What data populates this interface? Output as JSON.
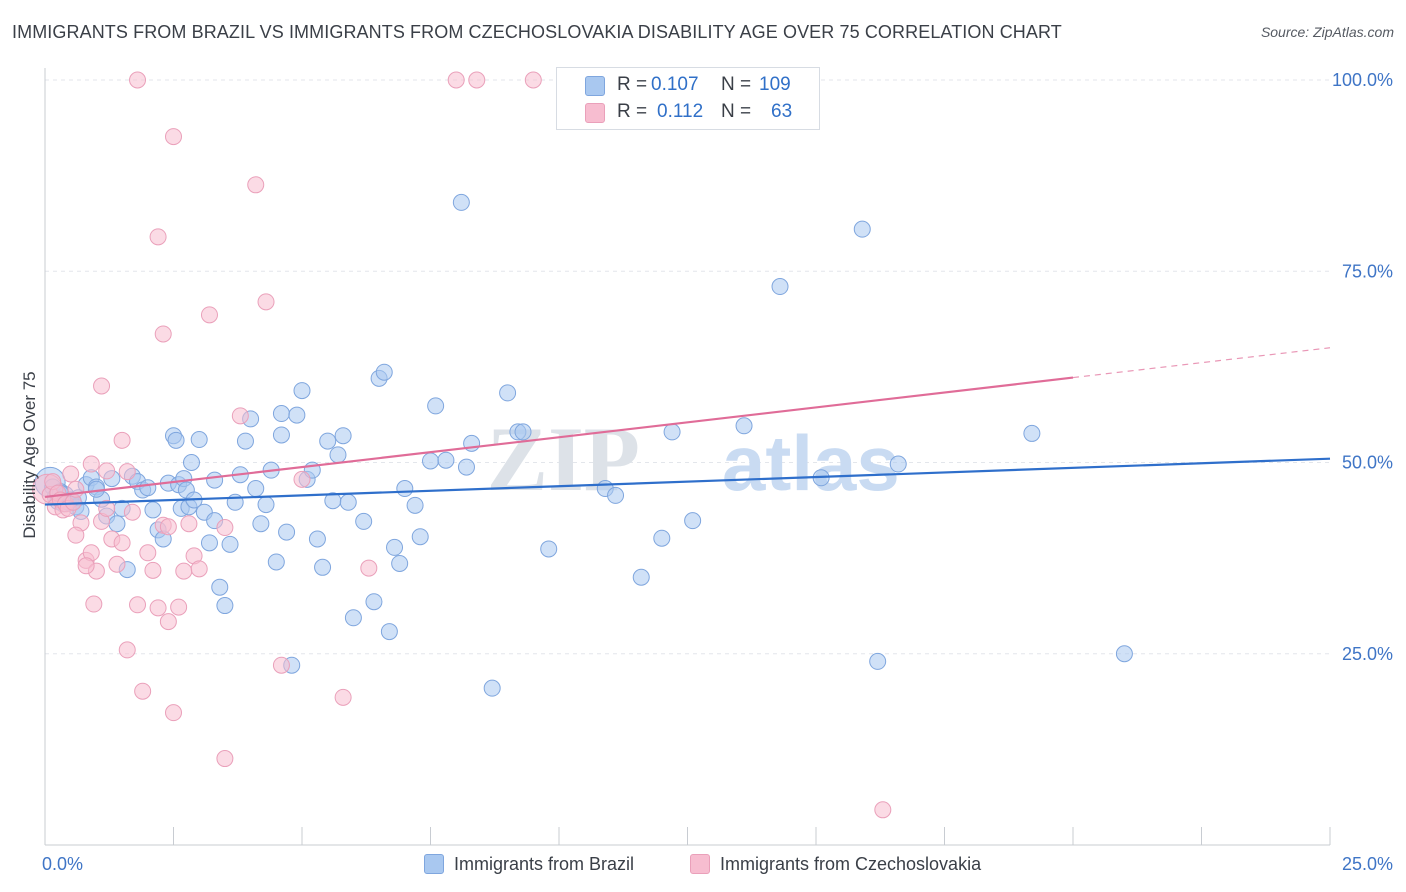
{
  "header": {
    "title": "IMMIGRANTS FROM BRAZIL VS IMMIGRANTS FROM CZECHOSLOVAKIA DISABILITY AGE OVER 75 CORRELATION CHART",
    "source": "Source: ZipAtlas.com"
  },
  "watermark": {
    "zip": "ZIP",
    "atlas": "atlas"
  },
  "stats": {
    "r_label": "R =",
    "n_label": "N =",
    "brazil": {
      "r": "0.107",
      "n": "109"
    },
    "czech": {
      "r": "0.112",
      "n": "63"
    }
  },
  "colors": {
    "brazil_fill": "#a9c8f0",
    "brazil_stroke": "#7fa6de",
    "brazil_line": "#2f6fcb",
    "czech_fill": "#f7bdd0",
    "czech_stroke": "#eaa0ba",
    "czech_line": "#e06c98",
    "axis_text": "#3f75c6",
    "grid": "#e3e6eb"
  },
  "chart_data": {
    "type": "scatter",
    "xlabel": "",
    "ylabel": "Disability Age Over 75",
    "xlim": [
      0,
      25
    ],
    "ylim": [
      0,
      100
    ],
    "x_tick_labels": [
      "0.0%",
      "25.0%"
    ],
    "y_tick_labels": [
      "25.0%",
      "50.0%",
      "75.0%",
      "100.0%"
    ],
    "y_ticks": [
      25,
      50,
      75,
      100
    ],
    "grid": true,
    "legend_position": "bottom",
    "series": [
      {
        "name": "Immigrants from Brazil",
        "color": "#a9c8f0",
        "trend": {
          "x0": 0,
          "y0": 44.5,
          "x1": 25,
          "y1": 50.5,
          "dashed_from": null
        },
        "points": [
          [
            0.1,
            47.4
          ],
          [
            0.15,
            46.8
          ],
          [
            0.2,
            45.5
          ],
          [
            0.25,
            44.9
          ],
          [
            0.3,
            46.2
          ],
          [
            0.35,
            44.6
          ],
          [
            0.4,
            45.8
          ],
          [
            0.45,
            44.8
          ],
          [
            0.5,
            45.1
          ],
          [
            0.55,
            44.9
          ],
          [
            0.6,
            44.2
          ],
          [
            0.65,
            45.4
          ],
          [
            0.7,
            43.6
          ],
          [
            0.8,
            47.1
          ],
          [
            0.9,
            48.0
          ],
          [
            1.0,
            46.8
          ],
          [
            1.1,
            45.2
          ],
          [
            1.2,
            43.0
          ],
          [
            1.3,
            47.9
          ],
          [
            1.4,
            42.0
          ],
          [
            1.5,
            44.0
          ],
          [
            1.6,
            36.0
          ],
          [
            1.7,
            48.2
          ],
          [
            1.8,
            47.5
          ],
          [
            1.9,
            46.4
          ],
          [
            2.0,
            46.7
          ],
          [
            2.1,
            43.8
          ],
          [
            2.2,
            41.2
          ],
          [
            2.3,
            40.0
          ],
          [
            2.4,
            47.3
          ],
          [
            2.5,
            53.5
          ],
          [
            2.55,
            52.9
          ],
          [
            2.6,
            47.1
          ],
          [
            2.65,
            44.0
          ],
          [
            2.7,
            47.9
          ],
          [
            2.75,
            46.4
          ],
          [
            2.8,
            44.2
          ],
          [
            2.85,
            50.0
          ],
          [
            3.0,
            53.0
          ],
          [
            3.1,
            43.5
          ],
          [
            3.2,
            39.5
          ],
          [
            3.3,
            42.4
          ],
          [
            3.4,
            33.7
          ],
          [
            3.5,
            31.3
          ],
          [
            3.6,
            39.3
          ],
          [
            3.7,
            44.8
          ],
          [
            3.8,
            48.4
          ],
          [
            3.9,
            52.8
          ],
          [
            4.0,
            55.7
          ],
          [
            4.1,
            46.6
          ],
          [
            4.2,
            42.0
          ],
          [
            4.3,
            44.5
          ],
          [
            4.4,
            49.0
          ],
          [
            4.5,
            37.0
          ],
          [
            4.6,
            56.4
          ],
          [
            4.7,
            40.9
          ],
          [
            4.8,
            23.5
          ],
          [
            4.9,
            56.2
          ],
          [
            5.0,
            59.4
          ],
          [
            5.1,
            47.8
          ],
          [
            5.2,
            49.0
          ],
          [
            5.3,
            40.0
          ],
          [
            5.4,
            36.3
          ],
          [
            5.5,
            52.8
          ],
          [
            5.6,
            45.0
          ],
          [
            5.7,
            51.0
          ],
          [
            5.8,
            53.5
          ],
          [
            5.9,
            44.8
          ],
          [
            6.0,
            29.7
          ],
          [
            6.2,
            42.3
          ],
          [
            6.4,
            31.8
          ],
          [
            6.5,
            61.0
          ],
          [
            6.6,
            61.8
          ],
          [
            6.7,
            27.9
          ],
          [
            6.8,
            38.9
          ],
          [
            6.9,
            36.8
          ],
          [
            7.0,
            46.6
          ],
          [
            7.3,
            40.3
          ],
          [
            7.5,
            50.2
          ],
          [
            7.6,
            57.4
          ],
          [
            7.8,
            50.3
          ],
          [
            8.2,
            49.4
          ],
          [
            8.3,
            52.5
          ],
          [
            8.1,
            84.0
          ],
          [
            8.7,
            20.5
          ],
          [
            9.0,
            59.1
          ],
          [
            9.2,
            54.0
          ],
          [
            9.3,
            54.0
          ],
          [
            9.8,
            38.7
          ],
          [
            10.9,
            46.6
          ],
          [
            11.1,
            45.7
          ],
          [
            11.6,
            35.0
          ],
          [
            12.0,
            40.1
          ],
          [
            12.2,
            54.0
          ],
          [
            12.6,
            42.4
          ],
          [
            13.6,
            54.8
          ],
          [
            14.3,
            73.0
          ],
          [
            15.1,
            48.0
          ],
          [
            15.9,
            80.5
          ],
          [
            16.2,
            24.0
          ],
          [
            16.6,
            49.8
          ],
          [
            19.2,
            53.8
          ],
          [
            21.0,
            25.0
          ],
          [
            3.3,
            47.7
          ],
          [
            1.0,
            46.5
          ],
          [
            0.3,
            46.0
          ],
          [
            2.9,
            45.1
          ],
          [
            4.6,
            53.6
          ],
          [
            7.2,
            44.4
          ]
        ]
      },
      {
        "name": "Immigrants from Czechoslovakia",
        "color": "#f7bdd0",
        "trend": {
          "x0": 0,
          "y0": 45.5,
          "x1": 25,
          "y1": 65.0,
          "dashed_from": 20
        },
        "points": [
          [
            0.05,
            46.5
          ],
          [
            0.1,
            45.8
          ],
          [
            0.15,
            47.5
          ],
          [
            0.2,
            44.2
          ],
          [
            0.25,
            46.0
          ],
          [
            0.3,
            45.1
          ],
          [
            0.35,
            43.8
          ],
          [
            0.4,
            44.6
          ],
          [
            0.45,
            44.0
          ],
          [
            0.5,
            48.5
          ],
          [
            0.55,
            44.8
          ],
          [
            0.6,
            46.5
          ],
          [
            0.7,
            42.1
          ],
          [
            0.8,
            37.2
          ],
          [
            0.9,
            38.2
          ],
          [
            1.0,
            35.8
          ],
          [
            1.1,
            42.3
          ],
          [
            1.2,
            48.9
          ],
          [
            1.3,
            40.0
          ],
          [
            1.4,
            36.7
          ],
          [
            1.5,
            39.5
          ],
          [
            1.6,
            25.5
          ],
          [
            1.7,
            43.5
          ],
          [
            1.8,
            31.4
          ],
          [
            1.9,
            20.1
          ],
          [
            2.0,
            38.2
          ],
          [
            2.1,
            35.9
          ],
          [
            2.2,
            31.0
          ],
          [
            2.3,
            41.8
          ],
          [
            2.4,
            29.2
          ],
          [
            2.5,
            17.3
          ],
          [
            2.6,
            31.1
          ],
          [
            2.7,
            35.8
          ],
          [
            2.8,
            42.0
          ],
          [
            2.9,
            37.8
          ],
          [
            3.0,
            36.1
          ],
          [
            3.2,
            69.3
          ],
          [
            3.5,
            11.3
          ],
          [
            3.8,
            56.1
          ],
          [
            4.1,
            86.3
          ],
          [
            4.3,
            71.0
          ],
          [
            4.6,
            23.5
          ],
          [
            5.0,
            47.8
          ],
          [
            5.8,
            19.3
          ],
          [
            6.3,
            36.2
          ],
          [
            8.0,
            100.0
          ],
          [
            8.4,
            100.0
          ],
          [
            9.5,
            100.0
          ],
          [
            1.8,
            100.0
          ],
          [
            2.5,
            92.6
          ],
          [
            2.2,
            79.5
          ],
          [
            2.3,
            66.8
          ],
          [
            1.1,
            60.0
          ],
          [
            1.5,
            52.9
          ],
          [
            0.9,
            49.8
          ],
          [
            1.6,
            48.8
          ],
          [
            0.95,
            31.5
          ],
          [
            1.2,
            44.0
          ],
          [
            0.6,
            40.5
          ],
          [
            0.8,
            36.5
          ],
          [
            2.4,
            41.6
          ],
          [
            16.3,
            4.6
          ],
          [
            3.5,
            41.5
          ]
        ]
      }
    ]
  },
  "legend": {
    "brazil_label": "Immigrants from Brazil",
    "czech_label": "Immigrants from Czechoslovakia"
  }
}
